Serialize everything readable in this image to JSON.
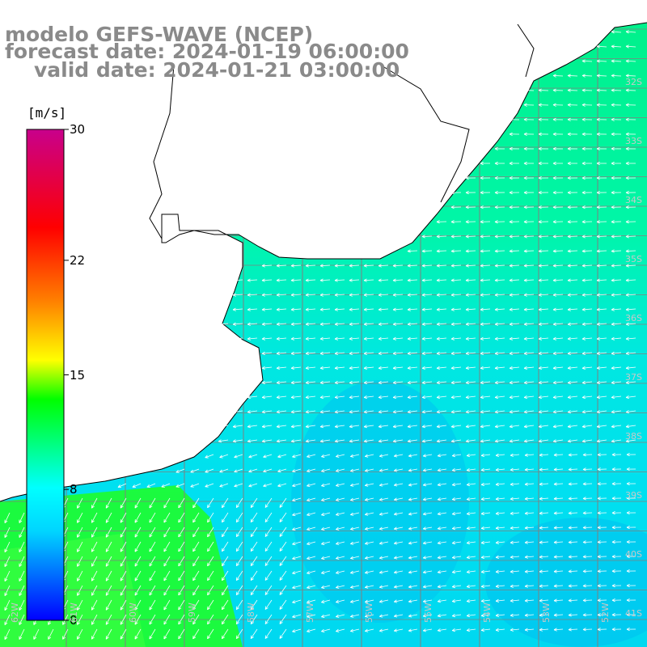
{
  "title": {
    "line1": "modelo GEFS-WAVE (NCEP)",
    "line2": "forecast date: 2024-01-19 06:00:00",
    "line3": "valid date: 2024-01-21 03:00:00"
  },
  "colorbar": {
    "unit": "[m/s]",
    "min": 0,
    "max": 30,
    "ticks": [
      "30",
      "22",
      "15",
      "8",
      "0"
    ],
    "tick_values": [
      30,
      22,
      15,
      8,
      0
    ],
    "colors": [
      "#0000ff",
      "#00d4ff",
      "#00ffff",
      "#00ff00",
      "#ffff00",
      "#ff8000",
      "#ff0000",
      "#c8008c"
    ]
  },
  "map": {
    "lat_labels": [
      "32S",
      "33S",
      "34S",
      "35S",
      "36S",
      "37S",
      "38S",
      "39S",
      "40S",
      "41S"
    ],
    "lat_values": [
      32,
      33,
      34,
      35,
      36,
      37,
      38,
      39,
      40,
      41
    ],
    "lon_labels": [
      "62W",
      "61W",
      "60W",
      "59W",
      "58W",
      "57W",
      "56W",
      "55W",
      "54W",
      "53W",
      "52W"
    ],
    "lon_values": [
      62,
      61,
      60,
      59,
      58,
      57,
      56,
      55,
      54,
      53,
      52
    ],
    "land_color": "#ffffff",
    "grid_color": "#808080",
    "arrow_color": "#ffffff"
  }
}
